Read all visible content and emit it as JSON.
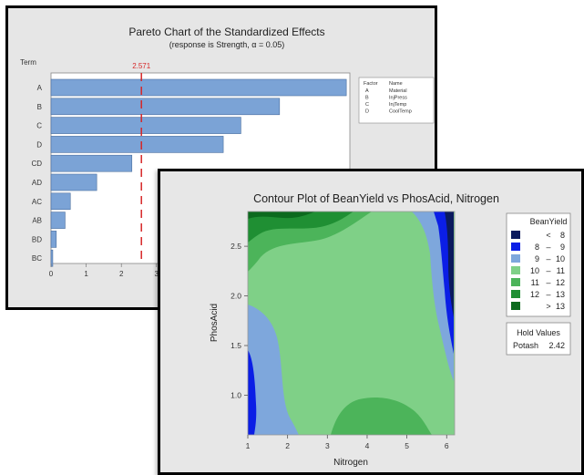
{
  "chart_data": [
    {
      "type": "bar",
      "orientation": "horizontal",
      "title": "Pareto Chart of the Standardized Effects",
      "subtitle": "(response is Strength, α = 0.05)",
      "ylabel": "Term",
      "categories": [
        "A",
        "B",
        "C",
        "D",
        "CD",
        "AD",
        "AC",
        "AB",
        "BD",
        "BC"
      ],
      "values": [
        8.4,
        6.5,
        5.4,
        4.9,
        2.3,
        1.3,
        0.55,
        0.4,
        0.15,
        0.05
      ],
      "xticks": [
        "0",
        "1",
        "2",
        "3"
      ],
      "xlim": [
        0,
        8.5
      ],
      "reference_line": {
        "value": 2.571,
        "label": "2.571",
        "color": "#d62728"
      },
      "bar_color": "#7ba3d6",
      "legend": {
        "position": "right",
        "header_factor": "Factor",
        "header_name": "Name",
        "entries": [
          {
            "factor": "A",
            "name": "Material"
          },
          {
            "factor": "B",
            "name": "InjPress"
          },
          {
            "factor": "C",
            "name": "InjTemp"
          },
          {
            "factor": "D",
            "name": "CoolTemp"
          }
        ]
      }
    },
    {
      "type": "contour",
      "title": "Contour Plot of BeanYield vs PhosAcid, Nitrogen",
      "xlabel": "Nitrogen",
      "ylabel": "PhosAcid",
      "xlim": [
        1,
        6.2
      ],
      "ylim": [
        0.6,
        2.85
      ],
      "xticks": [
        "1",
        "2",
        "3",
        "4",
        "5",
        "6"
      ],
      "yticks": [
        "1.0",
        "1.5",
        "2.0",
        "2.5"
      ],
      "legend": {
        "position": "right",
        "title": "BeanYield",
        "entries": [
          {
            "lo": "",
            "sep": "<",
            "hi": "8",
            "color": "#0b1a5e"
          },
          {
            "lo": "8",
            "sep": "–",
            "hi": "9",
            "color": "#0b1ee6"
          },
          {
            "lo": "9",
            "sep": "–",
            "hi": "10",
            "color": "#7ea7dc"
          },
          {
            "lo": "10",
            "sep": "–",
            "hi": "11",
            "color": "#7fd087"
          },
          {
            "lo": "11",
            "sep": "–",
            "hi": "12",
            "color": "#4cb45a"
          },
          {
            "lo": "12",
            "sep": "–",
            "hi": "13",
            "color": "#1f8f33"
          },
          {
            "lo": "",
            "sep": ">",
            "hi": "13",
            "color": "#0c6a1e"
          }
        ]
      },
      "hold_values": {
        "title": "Hold Values",
        "label": "Potash",
        "value": "2.42"
      }
    }
  ]
}
